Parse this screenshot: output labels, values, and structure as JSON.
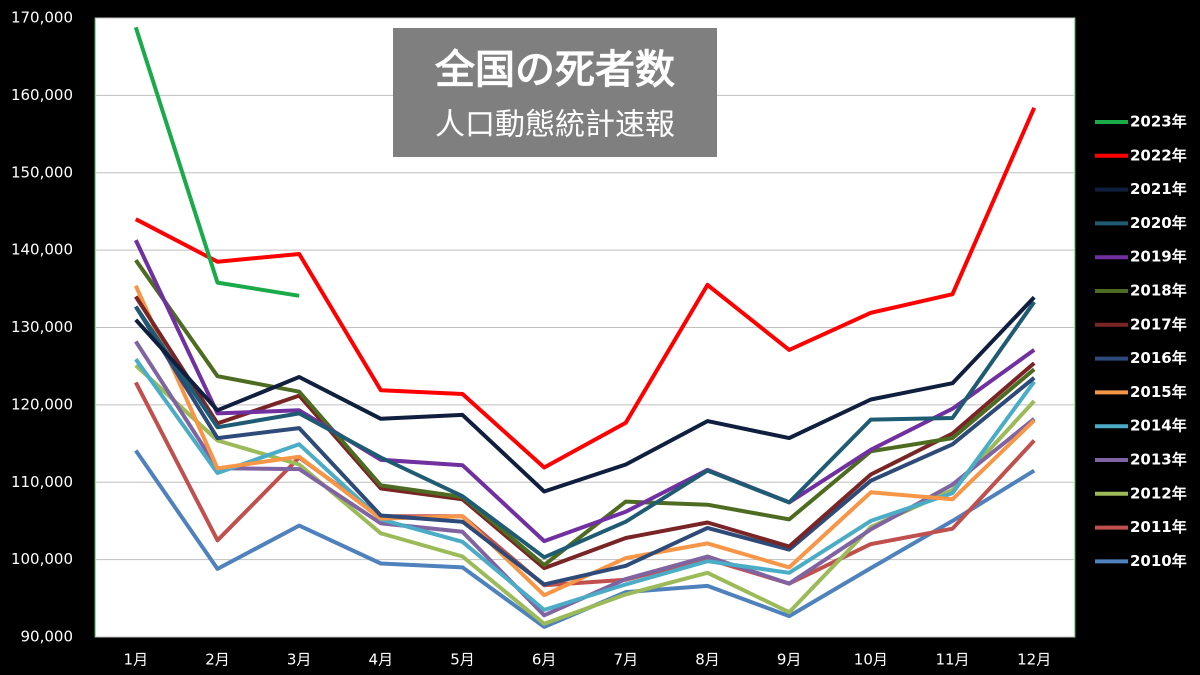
{
  "chart_data": {
    "type": "line",
    "title": "全国の死者数",
    "subtitle": "人口動態統計速報",
    "categories": [
      "1月",
      "2月",
      "3月",
      "4月",
      "5月",
      "6月",
      "7月",
      "8月",
      "9月",
      "10月",
      "11月",
      "12月"
    ],
    "ylim": [
      90000,
      170000
    ],
    "yticks": [
      {
        "value": 90000,
        "label": "90,000"
      },
      {
        "value": 100000,
        "label": "100,000"
      },
      {
        "value": 110000,
        "label": "110,000"
      },
      {
        "value": 120000,
        "label": "120,000"
      },
      {
        "value": 130000,
        "label": "130,000"
      },
      {
        "value": 140000,
        "label": "140,000"
      },
      {
        "value": 150000,
        "label": "150,000"
      },
      {
        "value": 160000,
        "label": "160,000"
      },
      {
        "value": 170000,
        "label": "170,000"
      }
    ],
    "grid": true,
    "legend": "right",
    "series": [
      {
        "name": "2023年",
        "color": "#1aaa4a",
        "values": [
          168800,
          135800,
          134100,
          null,
          null,
          null,
          null,
          null,
          null,
          null,
          null,
          null
        ]
      },
      {
        "name": "2022年",
        "color": "#ff0000",
        "values": [
          144000,
          138500,
          139500,
          121900,
          121400,
          111900,
          117700,
          135500,
          127100,
          131900,
          134300,
          158400
        ]
      },
      {
        "name": "2021年",
        "color": "#0f1f3d",
        "values": [
          131000,
          119300,
          123600,
          118200,
          118700,
          108800,
          112300,
          117900,
          115700,
          120700,
          122800,
          133900
        ]
      },
      {
        "name": "2020年",
        "color": "#1f5c73",
        "values": [
          132700,
          117100,
          118900,
          113200,
          108200,
          100300,
          104900,
          111500,
          107400,
          118100,
          118300,
          133300
        ]
      },
      {
        "name": "2019年",
        "color": "#7030a0",
        "values": [
          141300,
          118900,
          119300,
          112900,
          112200,
          102400,
          106200,
          111600,
          107400,
          114200,
          119500,
          127100
        ]
      },
      {
        "name": "2018年",
        "color": "#4e6b22",
        "values": [
          138700,
          123700,
          121700,
          109600,
          108100,
          99300,
          107500,
          107100,
          105200,
          114000,
          115700,
          124600
        ]
      },
      {
        "name": "2017年",
        "color": "#7a2525",
        "values": [
          134000,
          117600,
          121200,
          109200,
          107800,
          98900,
          102800,
          104800,
          101700,
          111000,
          116300,
          125400
        ]
      },
      {
        "name": "2016年",
        "color": "#2e4a78",
        "values": [
          132700,
          115700,
          117000,
          105700,
          104900,
          96800,
          99200,
          104100,
          101300,
          110200,
          114900,
          123500
        ]
      },
      {
        "name": "2015年",
        "color": "#f79646",
        "values": [
          135400,
          111800,
          113300,
          105300,
          105600,
          95400,
          100200,
          102100,
          99000,
          108700,
          107800,
          118000
        ]
      },
      {
        "name": "2014年",
        "color": "#4bacc6",
        "values": [
          125900,
          111200,
          114900,
          105200,
          102300,
          93500,
          96800,
          99800,
          98300,
          105000,
          108600,
          123000
        ]
      },
      {
        "name": "2013年",
        "color": "#8064a2",
        "values": [
          128200,
          111800,
          111700,
          104700,
          103600,
          92800,
          97500,
          100400,
          96900,
          103900,
          109700,
          118200
        ]
      },
      {
        "name": "2012年",
        "color": "#9bbb59",
        "values": [
          125100,
          115400,
          112300,
          103400,
          100400,
          91700,
          95500,
          98300,
          93200,
          104200,
          109000,
          120500
        ]
      },
      {
        "name": "2011年",
        "color": "#c0504d",
        "values": [
          122900,
          102500,
          113200,
          105600,
          105600,
          96700,
          97400,
          100100,
          96900,
          102000,
          104000,
          115400
        ]
      },
      {
        "name": "2010年",
        "color": "#4f81bd",
        "values": [
          114100,
          98800,
          104400,
          99500,
          99000,
          91300,
          95800,
          96600,
          92700,
          98900,
          105000,
          111500
        ]
      }
    ]
  }
}
